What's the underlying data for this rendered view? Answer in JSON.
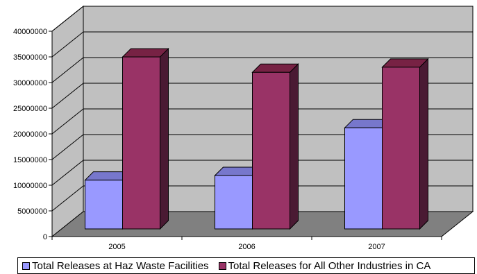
{
  "chart_data": {
    "type": "bar",
    "title": "",
    "xlabel": "",
    "ylabel": "",
    "categories": [
      "2005",
      "2006",
      "2007"
    ],
    "series": [
      {
        "name": "Total Releases at Haz Waste Facilities",
        "values": [
          11800000,
          12700000,
          22000000
        ]
      },
      {
        "name": "Total Releases for All Other Industries in CA",
        "values": [
          35800000,
          32800000,
          33800000
        ]
      }
    ],
    "ylim": [
      0,
      40000000
    ],
    "yticks": [
      "0",
      "5000000",
      "10000000",
      "15000000",
      "20000000",
      "25000000",
      "30000000",
      "35000000",
      "40000000"
    ],
    "grid": true,
    "style": "3d-clustered-column",
    "legend_position": "bottom",
    "colors": {
      "series_front": [
        "#9999ff",
        "#993366"
      ],
      "series_top": [
        "#7777cc",
        "#772244"
      ],
      "series_side": [
        "#555599",
        "#4a1a33"
      ],
      "back_wall": "#c0c0c0",
      "side_wall": "#c0c0c0",
      "floor": "#808080",
      "gridline": "#000000"
    }
  }
}
